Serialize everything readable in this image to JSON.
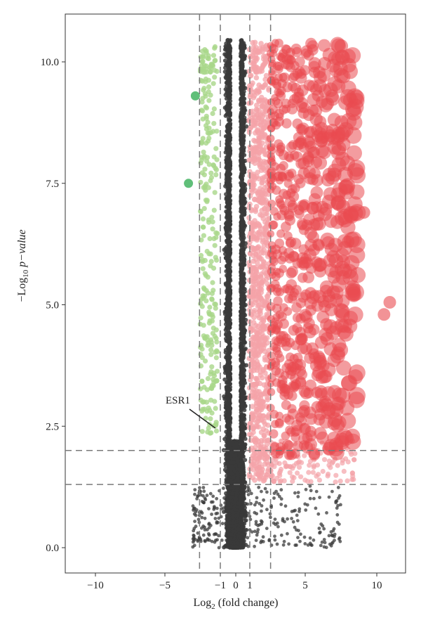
{
  "chart_data": {
    "type": "scatter",
    "subtype": "volcano",
    "xlabel": {
      "main": "Log",
      "sub": "2",
      "rest": " (fold change)"
    },
    "ylabel": {
      "prefix": "−Log",
      "sub": "10",
      "italic": " p−value"
    },
    "xlim": [
      -12,
      12
    ],
    "ylim": [
      -0.5,
      11.0
    ],
    "x_ticks": [
      -10,
      -5,
      -1,
      0,
      1,
      5,
      10
    ],
    "x_tick_labels": [
      "−10",
      "−5",
      "−1",
      "0",
      "1",
      "5",
      "10"
    ],
    "y_ticks": [
      0.0,
      2.5,
      5.0,
      7.5,
      10.0
    ],
    "y_tick_labels": [
      "0.0",
      "2.5",
      "5.0",
      "7.5",
      "10.0"
    ],
    "grid": false,
    "reference_lines": {
      "vertical": [
        -2.5,
        -1,
        1,
        2.5
      ],
      "horizontal": [
        1.3,
        2.0
      ]
    },
    "colors": {
      "not_significant": "#3a3a3a",
      "down_weak": "#a9d78a",
      "down_strong": "#4fb86a",
      "up_weak": "#f4a3a8",
      "up_strong": "#ea4b50",
      "reference_line": "#7a7a7a",
      "frame": "#333333"
    },
    "highlighted_points": [
      {
        "x": -2.8,
        "y": 9.3,
        "group": "down_strong"
      },
      {
        "x": -3.3,
        "y": 7.5,
        "group": "down_strong"
      }
    ],
    "annotation": {
      "text": "ESR1",
      "x": -1.4,
      "y": 2.45
    }
  }
}
